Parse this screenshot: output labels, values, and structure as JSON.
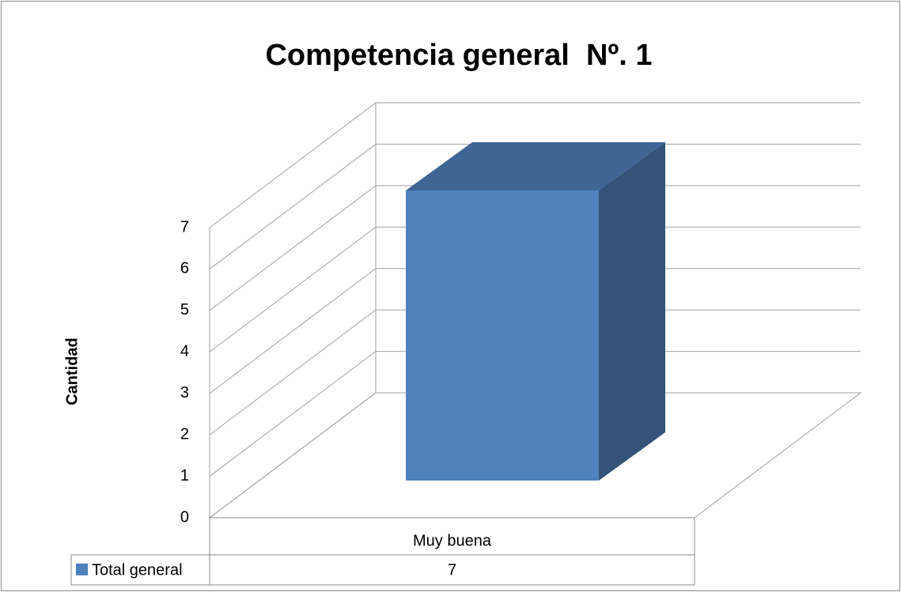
{
  "chart_data": {
    "type": "bar3d",
    "title": "Competencia general  Nº. 1",
    "y_label": "Cantidad",
    "categories": [
      "Muy buena"
    ],
    "series": [
      {
        "name": "Total general",
        "color": "#4f81bd",
        "values": [
          7
        ]
      }
    ],
    "ylim": [
      0,
      7
    ],
    "yticks": [
      0,
      1,
      2,
      3,
      4,
      5,
      6,
      7
    ],
    "grid": true,
    "data_table": true
  }
}
